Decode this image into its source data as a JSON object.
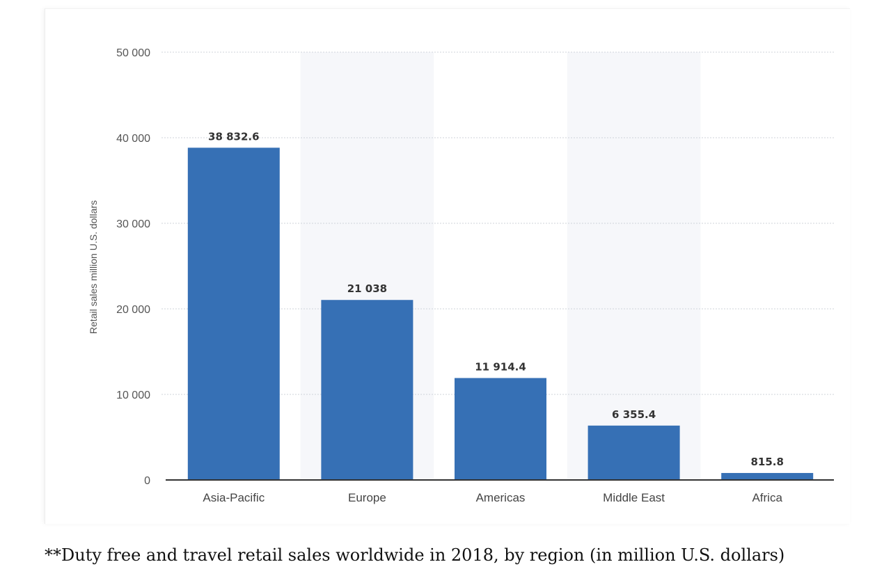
{
  "chart_data": {
    "type": "bar",
    "categories": [
      "Asia-Pacific",
      "Europe",
      "Americas",
      "Middle East",
      "Africa"
    ],
    "values": [
      38832.6,
      21038,
      11914.4,
      6355.4,
      815.8
    ],
    "data_labels": [
      "38 832.6",
      "21 038",
      "11 914.4",
      "6 355.4",
      "815.8"
    ],
    "ylabel": "Retail sales million U.S. dollars",
    "ylim": [
      0,
      50000
    ],
    "yticks": [
      0,
      10000,
      20000,
      30000,
      40000,
      50000
    ],
    "ytick_labels": [
      "0",
      "10 000",
      "20 000",
      "30 000",
      "40 000",
      "50 000"
    ],
    "grid": true,
    "bar_color": "#3670b5",
    "band_color": "#f6f7fa"
  },
  "caption": "**Duty free and travel retail sales worldwide in 2018, by region (in million U.S. dollars)"
}
